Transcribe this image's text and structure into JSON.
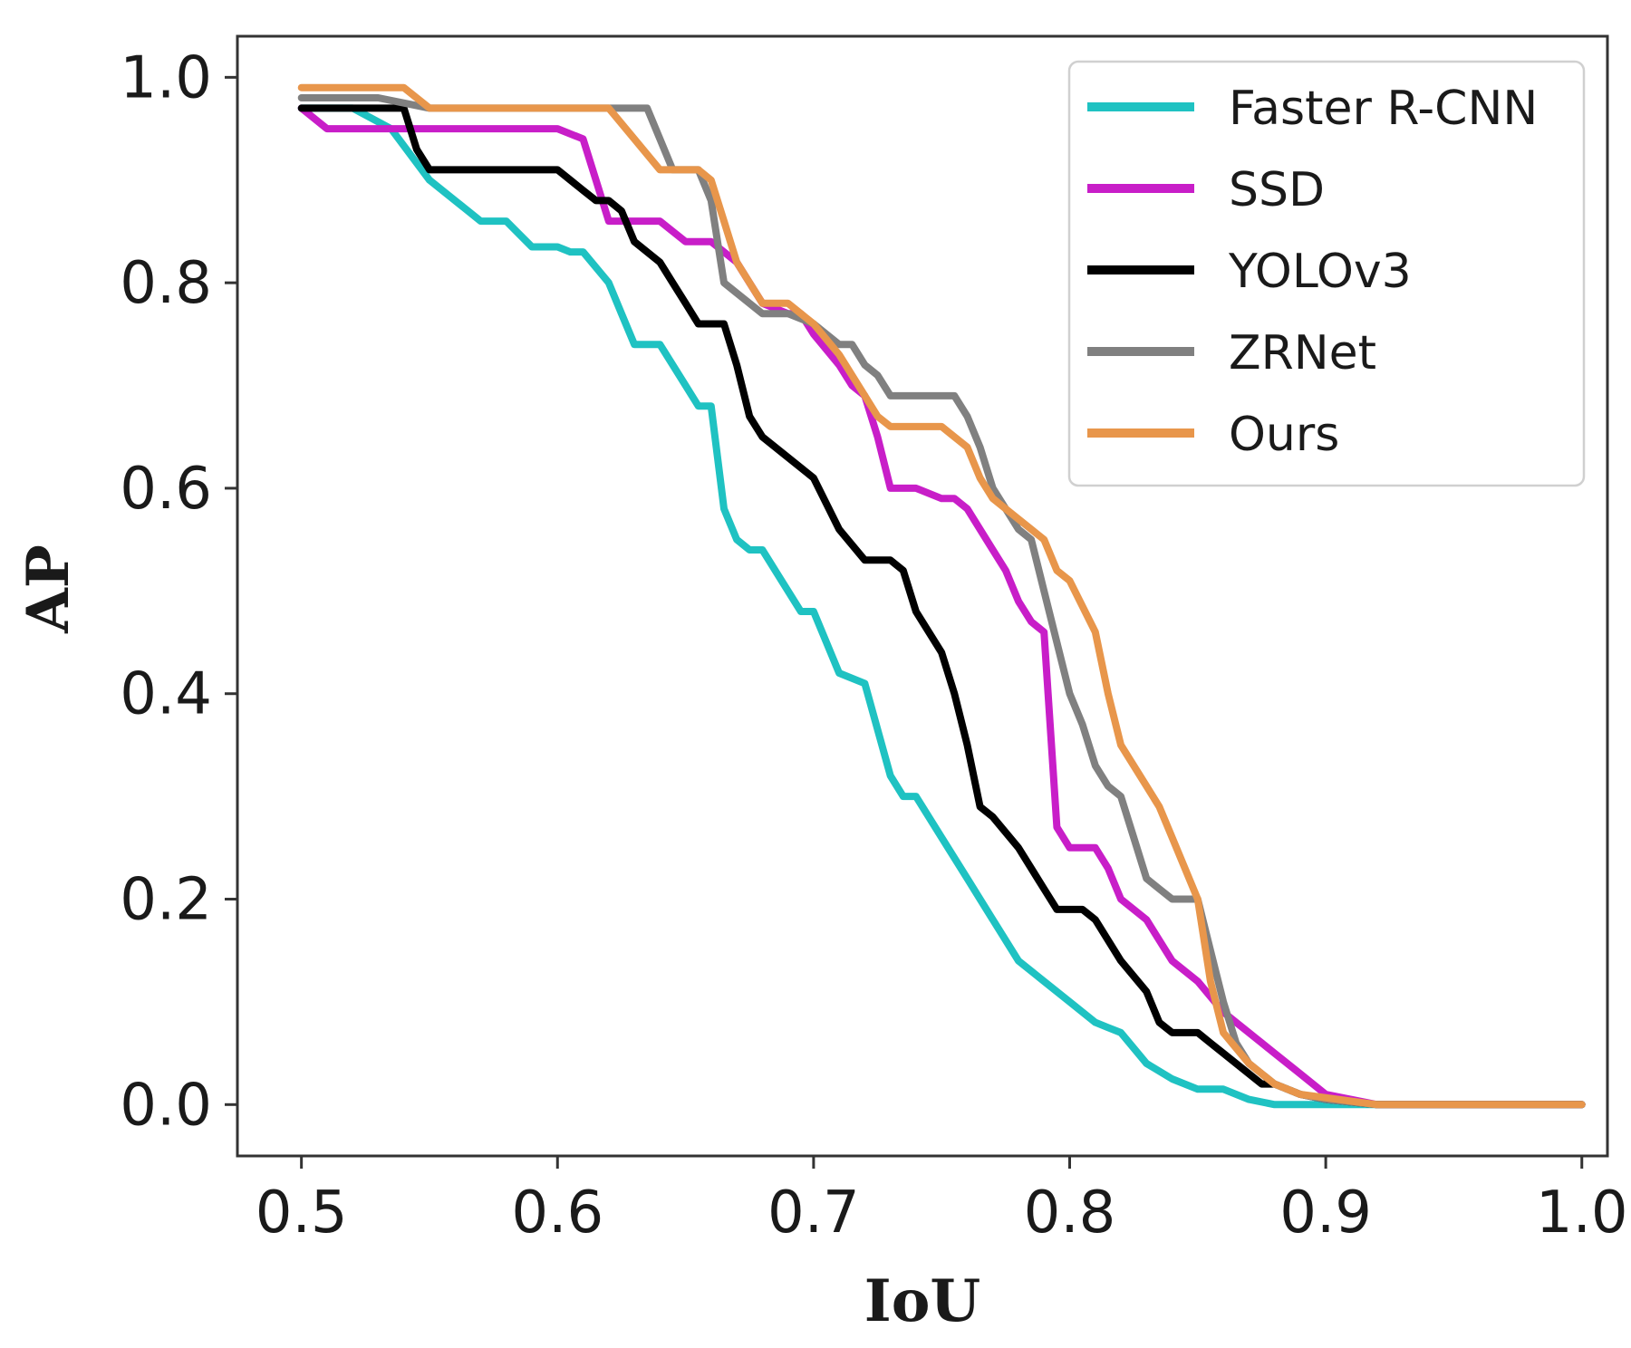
{
  "chart_data": {
    "type": "line",
    "title": "",
    "xlabel": "IoU",
    "ylabel": "AP",
    "xlim": [
      0.475,
      1.01
    ],
    "ylim": [
      -0.05,
      1.04
    ],
    "xticks": [
      0.5,
      0.6,
      0.7,
      0.8,
      0.9,
      1.0
    ],
    "xtick_labels": [
      "0.5",
      "0.6",
      "0.7",
      "0.8",
      "0.9",
      "1.0"
    ],
    "yticks": [
      0.0,
      0.2,
      0.4,
      0.6,
      0.8,
      1.0
    ],
    "ytick_labels": [
      "0.0",
      "0.2",
      "0.4",
      "0.6",
      "0.8",
      "1.0"
    ],
    "grid": false,
    "legend_position": "top-right",
    "series": [
      {
        "name": "Faster R-CNN",
        "color": "#1fc2c2",
        "x": [
          0.5,
          0.52,
          0.535,
          0.55,
          0.57,
          0.58,
          0.59,
          0.6,
          0.605,
          0.61,
          0.62,
          0.625,
          0.63,
          0.635,
          0.64,
          0.65,
          0.655,
          0.66,
          0.665,
          0.67,
          0.675,
          0.68,
          0.69,
          0.695,
          0.7,
          0.71,
          0.72,
          0.73,
          0.735,
          0.74,
          0.75,
          0.76,
          0.765,
          0.77,
          0.78,
          0.79,
          0.8,
          0.81,
          0.815,
          0.82,
          0.83,
          0.84,
          0.85,
          0.86,
          0.87,
          0.88,
          0.9,
          0.92,
          1.0
        ],
        "y": [
          0.97,
          0.97,
          0.95,
          0.9,
          0.86,
          0.86,
          0.835,
          0.835,
          0.83,
          0.83,
          0.8,
          0.77,
          0.74,
          0.74,
          0.74,
          0.7,
          0.68,
          0.68,
          0.58,
          0.55,
          0.54,
          0.54,
          0.5,
          0.48,
          0.48,
          0.42,
          0.41,
          0.32,
          0.3,
          0.3,
          0.26,
          0.22,
          0.2,
          0.18,
          0.14,
          0.12,
          0.1,
          0.08,
          0.075,
          0.07,
          0.04,
          0.025,
          0.015,
          0.015,
          0.005,
          0.0,
          0.0,
          0.0,
          0.0
        ]
      },
      {
        "name": "SSD",
        "color": "#c81ec8",
        "x": [
          0.5,
          0.51,
          0.53,
          0.55,
          0.57,
          0.59,
          0.6,
          0.61,
          0.615,
          0.62,
          0.63,
          0.64,
          0.65,
          0.655,
          0.66,
          0.665,
          0.67,
          0.675,
          0.68,
          0.69,
          0.695,
          0.7,
          0.71,
          0.715,
          0.72,
          0.725,
          0.73,
          0.735,
          0.74,
          0.75,
          0.755,
          0.76,
          0.77,
          0.775,
          0.78,
          0.785,
          0.79,
          0.795,
          0.8,
          0.805,
          0.81,
          0.815,
          0.82,
          0.83,
          0.835,
          0.84,
          0.85,
          0.86,
          0.87,
          0.875,
          0.88,
          0.89,
          0.9,
          0.92,
          1.0
        ],
        "y": [
          0.97,
          0.95,
          0.95,
          0.95,
          0.95,
          0.95,
          0.95,
          0.94,
          0.9,
          0.86,
          0.86,
          0.86,
          0.84,
          0.84,
          0.84,
          0.83,
          0.82,
          0.8,
          0.78,
          0.77,
          0.77,
          0.75,
          0.72,
          0.7,
          0.69,
          0.65,
          0.6,
          0.6,
          0.6,
          0.59,
          0.59,
          0.58,
          0.54,
          0.52,
          0.49,
          0.47,
          0.46,
          0.27,
          0.25,
          0.25,
          0.25,
          0.23,
          0.2,
          0.18,
          0.16,
          0.14,
          0.12,
          0.09,
          0.07,
          0.06,
          0.05,
          0.03,
          0.01,
          0.0,
          0.0
        ]
      },
      {
        "name": "YOLOv3",
        "color": "#000000",
        "x": [
          0.5,
          0.52,
          0.54,
          0.545,
          0.55,
          0.56,
          0.58,
          0.6,
          0.61,
          0.615,
          0.62,
          0.625,
          0.63,
          0.64,
          0.645,
          0.65,
          0.655,
          0.66,
          0.665,
          0.67,
          0.675,
          0.68,
          0.69,
          0.7,
          0.71,
          0.72,
          0.73,
          0.735,
          0.74,
          0.75,
          0.755,
          0.76,
          0.765,
          0.77,
          0.78,
          0.79,
          0.795,
          0.8,
          0.805,
          0.81,
          0.82,
          0.83,
          0.835,
          0.84,
          0.85,
          0.855,
          0.86,
          0.87,
          0.875,
          0.88,
          0.89,
          0.9,
          0.92,
          1.0
        ],
        "y": [
          0.97,
          0.97,
          0.97,
          0.93,
          0.91,
          0.91,
          0.91,
          0.91,
          0.89,
          0.88,
          0.88,
          0.87,
          0.84,
          0.82,
          0.8,
          0.78,
          0.76,
          0.76,
          0.76,
          0.72,
          0.67,
          0.65,
          0.63,
          0.61,
          0.56,
          0.53,
          0.53,
          0.52,
          0.48,
          0.44,
          0.4,
          0.35,
          0.29,
          0.28,
          0.25,
          0.21,
          0.19,
          0.19,
          0.19,
          0.18,
          0.14,
          0.11,
          0.08,
          0.07,
          0.07,
          0.06,
          0.05,
          0.03,
          0.02,
          0.02,
          0.01,
          0.005,
          0.0,
          0.0
        ]
      },
      {
        "name": "ZRNet",
        "color": "#808080",
        "x": [
          0.5,
          0.53,
          0.55,
          0.58,
          0.6,
          0.62,
          0.63,
          0.635,
          0.64,
          0.645,
          0.65,
          0.655,
          0.66,
          0.665,
          0.67,
          0.68,
          0.69,
          0.7,
          0.71,
          0.715,
          0.72,
          0.725,
          0.73,
          0.74,
          0.75,
          0.755,
          0.76,
          0.765,
          0.77,
          0.78,
          0.785,
          0.79,
          0.8,
          0.805,
          0.81,
          0.815,
          0.82,
          0.825,
          0.83,
          0.835,
          0.84,
          0.845,
          0.85,
          0.855,
          0.86,
          0.865,
          0.87,
          0.88,
          0.89,
          0.9,
          0.92,
          1.0
        ],
        "y": [
          0.98,
          0.98,
          0.97,
          0.97,
          0.97,
          0.97,
          0.97,
          0.97,
          0.94,
          0.91,
          0.91,
          0.91,
          0.88,
          0.8,
          0.79,
          0.77,
          0.77,
          0.76,
          0.74,
          0.74,
          0.72,
          0.71,
          0.69,
          0.69,
          0.69,
          0.69,
          0.67,
          0.64,
          0.6,
          0.56,
          0.55,
          0.5,
          0.4,
          0.37,
          0.33,
          0.31,
          0.3,
          0.26,
          0.22,
          0.21,
          0.2,
          0.2,
          0.2,
          0.15,
          0.1,
          0.06,
          0.04,
          0.02,
          0.01,
          0.005,
          0.0,
          0.0
        ]
      },
      {
        "name": "Ours",
        "color": "#e8964b",
        "x": [
          0.5,
          0.52,
          0.54,
          0.55,
          0.57,
          0.6,
          0.62,
          0.63,
          0.64,
          0.645,
          0.65,
          0.655,
          0.66,
          0.665,
          0.67,
          0.68,
          0.69,
          0.7,
          0.71,
          0.72,
          0.725,
          0.73,
          0.74,
          0.75,
          0.755,
          0.76,
          0.765,
          0.77,
          0.78,
          0.79,
          0.795,
          0.8,
          0.81,
          0.815,
          0.82,
          0.83,
          0.835,
          0.84,
          0.845,
          0.85,
          0.855,
          0.86,
          0.87,
          0.88,
          0.89,
          0.92,
          1.0
        ],
        "y": [
          0.99,
          0.99,
          0.99,
          0.97,
          0.97,
          0.97,
          0.97,
          0.94,
          0.91,
          0.91,
          0.91,
          0.91,
          0.9,
          0.86,
          0.82,
          0.78,
          0.78,
          0.76,
          0.73,
          0.69,
          0.67,
          0.66,
          0.66,
          0.66,
          0.65,
          0.64,
          0.61,
          0.59,
          0.57,
          0.55,
          0.52,
          0.51,
          0.46,
          0.4,
          0.35,
          0.31,
          0.29,
          0.26,
          0.23,
          0.2,
          0.12,
          0.07,
          0.04,
          0.02,
          0.01,
          0.0,
          0.0
        ]
      }
    ]
  }
}
